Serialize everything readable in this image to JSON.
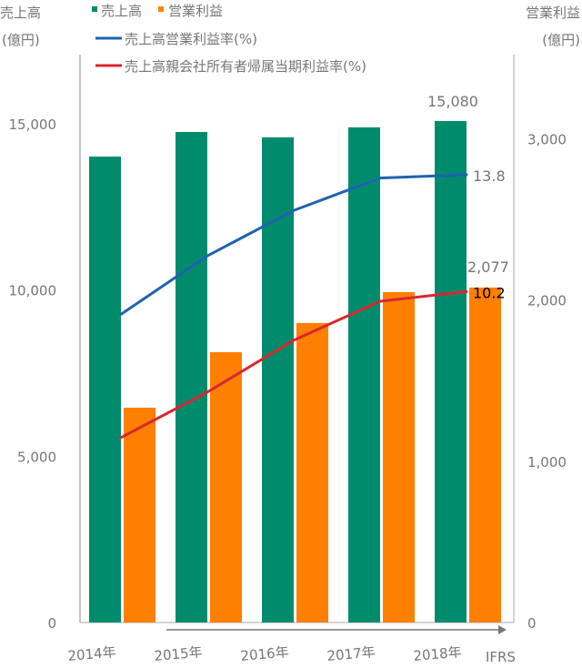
{
  "chart_data": {
    "type": "bar",
    "categories": [
      "2014年",
      "2015年",
      "2016年",
      "2017年",
      "2018年"
    ],
    "x_note": "IFRS",
    "left_axis": {
      "title": "売上高",
      "unit": "(億円)",
      "ticks": [
        "0",
        "5,000",
        "10,000",
        "15,000"
      ],
      "tick_values": [
        0,
        5000,
        10000,
        15000
      ],
      "range": [
        0,
        18000
      ]
    },
    "right_axis": {
      "title": "営業利益",
      "unit": "(億円)",
      "ticks": [
        "0",
        "1,000",
        "2,000",
        "3,000"
      ],
      "tick_values": [
        0,
        1000,
        2000,
        3000
      ],
      "range": [
        0,
        3500
      ]
    },
    "series": [
      {
        "name": "売上高",
        "type": "bar",
        "axis": "left",
        "color": "#008C6C",
        "values": [
          14010,
          14750,
          14590,
          14890,
          15080
        ],
        "last_label": "15,080"
      },
      {
        "name": "営業利益",
        "type": "bar",
        "axis": "right",
        "color": "#FF7F00",
        "values": [
          1332,
          1676,
          1857,
          2049,
          2077
        ],
        "last_label": "2,077"
      },
      {
        "name": "売上高営業利益率(%)",
        "type": "line",
        "color": "#1F63B0",
        "values": [
          9.5,
          11.3,
          12.7,
          13.7,
          13.8
        ],
        "last_label": "13.8"
      },
      {
        "name": "売上高親会社所有者帰属当期利益率(%)",
        "type": "line",
        "color": "#D9262F",
        "values": [
          5.7,
          7.1,
          8.7,
          9.9,
          10.2
        ],
        "last_label": "10.2"
      }
    ],
    "legend": "top",
    "grid": false
  }
}
